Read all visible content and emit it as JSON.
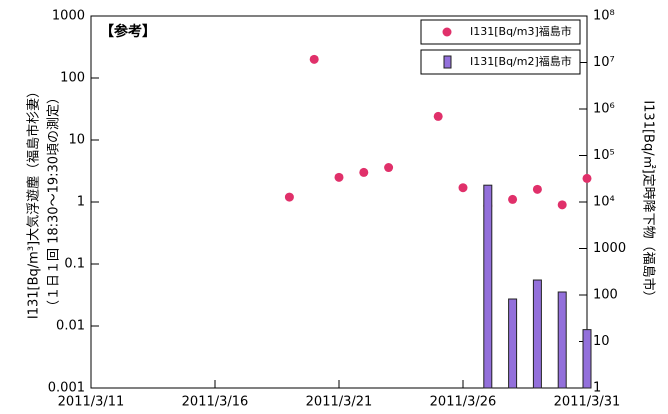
{
  "chart_data": {
    "type": "scatter-bar",
    "annotation": "【参考】",
    "ylabel": "I131[Bq/m³]大気浮遊塵（福島市杉妻）",
    "ylabel_sub": "（１日１回 18:30～19:30頃の測定）",
    "y2label": "I131[Bq/㎡]定時降下物（福島市）",
    "xlim": [
      "2011/3/11",
      "2011/3/31"
    ],
    "xticks": [
      "2011/3/11",
      "2011/3/16",
      "2011/3/21",
      "2011/3/26",
      "2011/3/31"
    ],
    "ylim": [
      0.001,
      1000
    ],
    "yticks": [
      1000,
      100,
      10,
      1,
      0.1,
      0.01,
      0.001
    ],
    "ylog": true,
    "y2lim": [
      1,
      100000000
    ],
    "y2ticks": [
      1,
      10,
      100,
      1000,
      {
        "value": 10000,
        "label": "10⁴"
      },
      {
        "value": 100000,
        "label": "10⁵"
      },
      {
        "value": 1000000,
        "label": "10⁶"
      },
      {
        "value": 10000000,
        "label": "10⁷"
      },
      {
        "value": 100000000,
        "label": "10⁸"
      }
    ],
    "y2log": true,
    "legend": "upper right",
    "series": [
      {
        "name": "I131[Bq/m3]福島市",
        "color": "#e0306a",
        "kind": "scatter",
        "x": [
          "2011/3/19",
          "2011/3/20",
          "2011/3/21",
          "2011/3/22",
          "2011/3/23",
          "2011/3/25",
          "2011/3/26",
          "2011/3/27",
          "2011/3/28",
          "2011/3/29",
          "2011/3/30",
          "2011/3/31"
        ],
        "values": [
          1.2,
          200,
          2.5,
          3,
          3.6,
          24,
          1.7,
          0.86,
          1.1,
          1.6,
          0.9,
          2.4
        ]
      },
      {
        "name": "I131[Bq/m2]福島市",
        "color": "#9370db",
        "kind": "bar",
        "axis": "y2",
        "x": [
          "2011/3/27",
          "2011/3/28",
          "2011/3/29",
          "2011/3/30",
          "2011/3/31"
        ],
        "values": [
          23000,
          82,
          210,
          116,
          18
        ]
      }
    ]
  }
}
